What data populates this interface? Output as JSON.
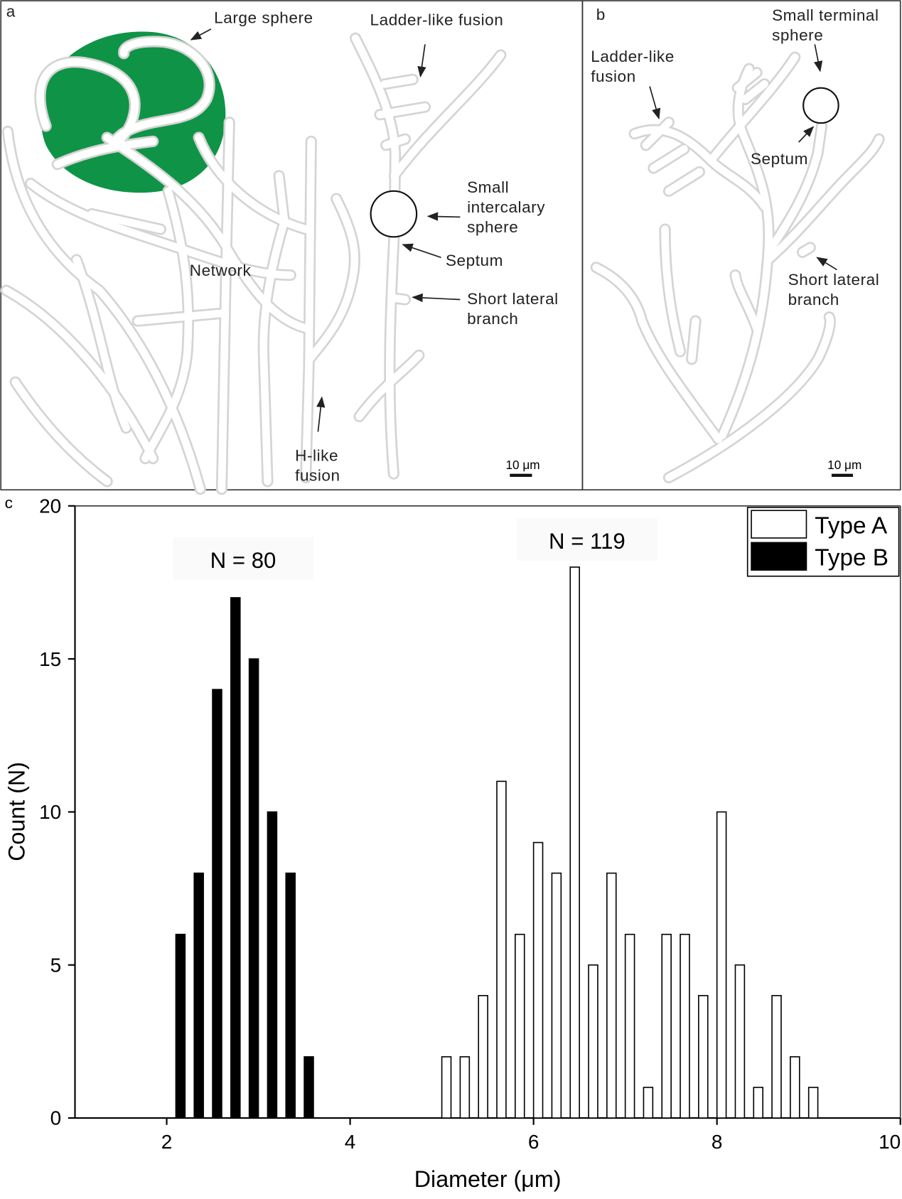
{
  "panel_a": {
    "label": "a",
    "annotations": [
      [
        "Large sphere"
      ],
      [
        "Ladder-like fusion"
      ],
      [
        "Small",
        "intercalary",
        "sphere"
      ],
      [
        "Septum"
      ],
      [
        "Network"
      ],
      [
        "Short lateral",
        "branch"
      ],
      [
        "H-like",
        "fusion"
      ]
    ],
    "scale_bar": "10 μm"
  },
  "panel_b": {
    "label": "b",
    "annotations": [
      [
        "Small terminal",
        "sphere"
      ],
      [
        "Ladder-like",
        "fusion"
      ],
      [
        "Septum"
      ],
      [
        "Short lateral",
        "branch"
      ]
    ],
    "scale_bar": "10 μm"
  },
  "chart_data": {
    "type": "bar",
    "panel_label": "c",
    "x_label": "Diameter (μm)",
    "y_label": "Count (N)",
    "xlim": [
      1,
      10
    ],
    "xticks": [
      2,
      4,
      6,
      8,
      10
    ],
    "ylim": [
      0,
      20
    ],
    "yticks": [
      0,
      5,
      10,
      15,
      20
    ],
    "legend": "upper right",
    "edgecolor": "#000000",
    "annotations": [
      "N = 80",
      "N = 119"
    ],
    "series": [
      {
        "name": "Type A",
        "color": "#ffffff",
        "x": [
          5.05,
          5.25,
          5.45,
          5.65,
          5.85,
          6.05,
          6.25,
          6.45,
          6.65,
          6.85,
          7.05,
          7.25,
          7.45,
          7.65,
          7.85,
          8.05,
          8.25,
          8.45,
          8.65,
          8.85,
          9.05
        ],
        "values": [
          2,
          2,
          4,
          11,
          6,
          9,
          8,
          18,
          5,
          8,
          6,
          1,
          6,
          6,
          4,
          10,
          5,
          1,
          4,
          2,
          1
        ]
      },
      {
        "name": "Type B",
        "color": "#000000",
        "x": [
          2.15,
          2.35,
          2.55,
          2.75,
          2.95,
          3.15,
          3.35,
          3.55
        ],
        "values": [
          6,
          8,
          14,
          17,
          15,
          10,
          8,
          2
        ]
      }
    ]
  }
}
